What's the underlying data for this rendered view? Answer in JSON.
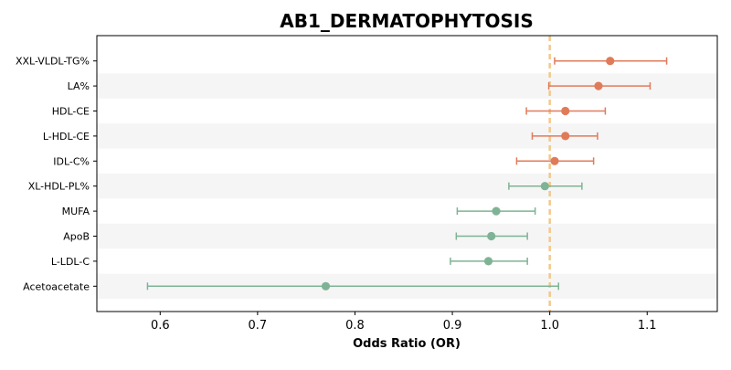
{
  "chart_data": {
    "type": "forest",
    "title": "AB1_DERMATOPHYTOSIS",
    "xlabel": "Odds Ratio (OR)",
    "ylabel": "",
    "xlim": [
      0.535,
      1.172
    ],
    "xticks": [
      0.6,
      0.7,
      0.8,
      0.9,
      1.0,
      1.1
    ],
    "xtick_labels": [
      "0.6",
      "0.7",
      "0.8",
      "0.9",
      "1.0",
      "1.1"
    ],
    "reference_line": 1.0,
    "grid": false,
    "alternating_row_shading": true,
    "colors": {
      "positive": "#e07b5a",
      "negative": "#7fb395",
      "reference_line": "#f2c98a",
      "row_shade": "#f5f5f5"
    },
    "rows": [
      {
        "label": "XXL-VLDL-TG%",
        "or": 1.062,
        "ci_low": 1.005,
        "ci_high": 1.12,
        "direction": "positive"
      },
      {
        "label": "LA%",
        "or": 1.05,
        "ci_low": 0.999,
        "ci_high": 1.103,
        "direction": "positive"
      },
      {
        "label": "HDL-CE",
        "or": 1.016,
        "ci_low": 0.976,
        "ci_high": 1.057,
        "direction": "positive"
      },
      {
        "label": "L-HDL-CE",
        "or": 1.016,
        "ci_low": 0.982,
        "ci_high": 1.049,
        "direction": "positive"
      },
      {
        "label": "IDL-C%",
        "or": 1.005,
        "ci_low": 0.966,
        "ci_high": 1.045,
        "direction": "positive"
      },
      {
        "label": "XL-HDL-PL%",
        "or": 0.995,
        "ci_low": 0.958,
        "ci_high": 1.033,
        "direction": "negative"
      },
      {
        "label": "MUFA",
        "or": 0.945,
        "ci_low": 0.905,
        "ci_high": 0.985,
        "direction": "negative"
      },
      {
        "label": "ApoB",
        "or": 0.94,
        "ci_low": 0.904,
        "ci_high": 0.977,
        "direction": "negative"
      },
      {
        "label": "L-LDL-C",
        "or": 0.937,
        "ci_low": 0.898,
        "ci_high": 0.977,
        "direction": "negative"
      },
      {
        "label": "Acetoacetate",
        "or": 0.77,
        "ci_low": 0.587,
        "ci_high": 1.009,
        "direction": "negative"
      }
    ]
  }
}
